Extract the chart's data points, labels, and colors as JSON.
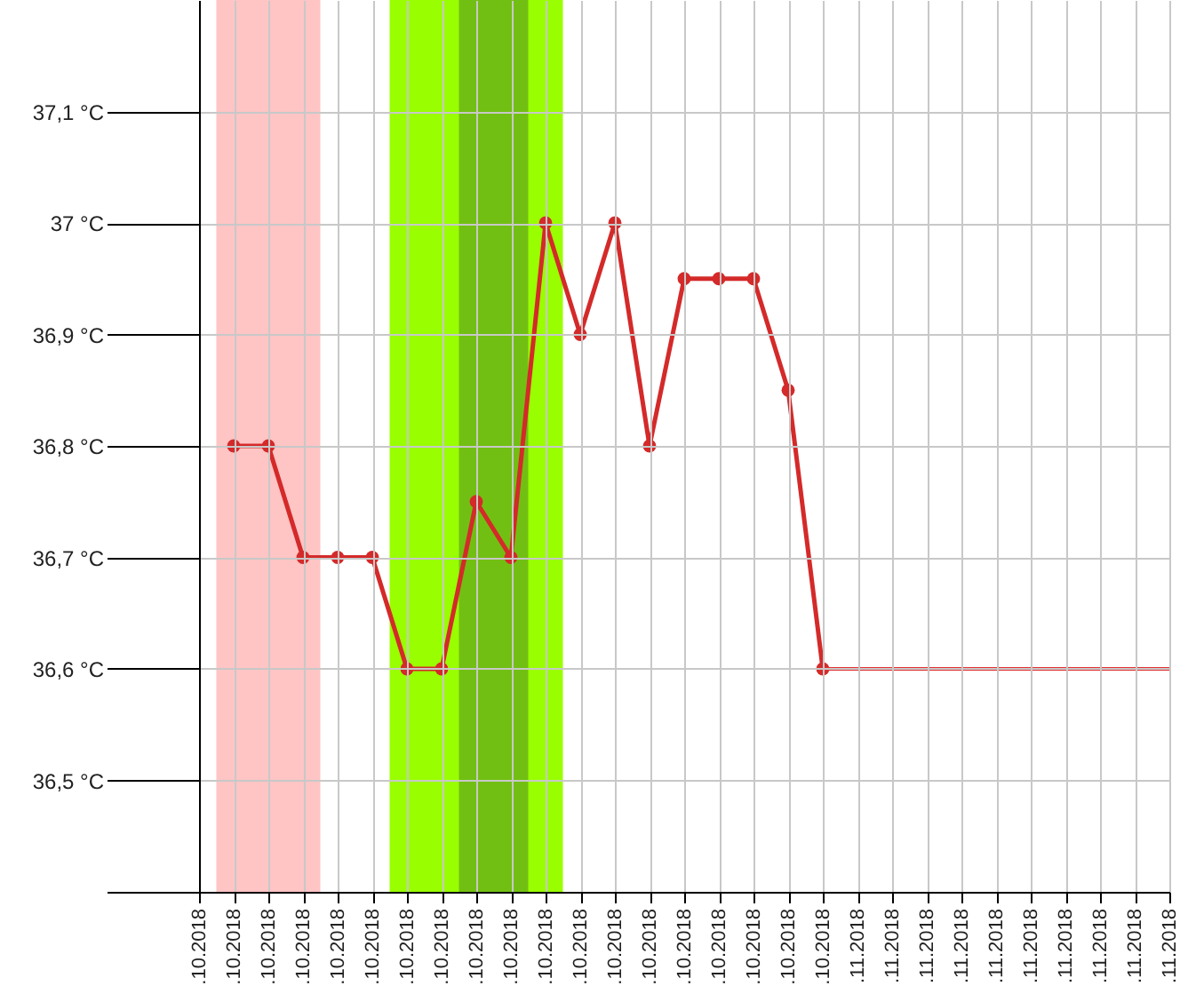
{
  "chart_data": {
    "type": "line",
    "categories": [
      ".10.2018",
      ".10.2018",
      ".10.2018",
      ".10.2018",
      ".10.2018",
      ".10.2018",
      ".10.2018",
      ".10.2018",
      ".10.2018",
      ".10.2018",
      ".10.2018",
      ".10.2018",
      ".10.2018",
      ".10.2018",
      ".10.2018",
      ".10.2018",
      ".10.2018",
      ".10.2018",
      ".10.2018",
      ".11.2018",
      ".11.2018",
      ".11.2018",
      ".11.2018",
      ".11.2018",
      ".11.2018",
      ".11.2018",
      ".11.2018",
      ".11.2018",
      ".11.2018"
    ],
    "series": [
      {
        "color": "#d42a2a",
        "marker": "circle",
        "values": [
          null,
          36.8,
          36.8,
          36.7,
          36.7,
          36.7,
          36.6,
          36.6,
          36.75,
          36.7,
          37.0,
          36.9,
          37.0,
          36.8,
          36.95,
          36.95,
          36.95,
          36.85,
          36.6,
          null,
          null,
          null,
          null,
          null,
          null,
          null,
          null,
          null,
          null
        ]
      },
      {
        "color": "#e03030",
        "marker": "none",
        "values": [
          null,
          null,
          null,
          null,
          null,
          null,
          null,
          null,
          null,
          null,
          null,
          null,
          null,
          null,
          null,
          null,
          null,
          null,
          36.6,
          36.6,
          36.6,
          36.6,
          36.6,
          36.6,
          36.6,
          36.6,
          36.6,
          36.6,
          36.6
        ]
      }
    ],
    "ylim": [
      36.4,
      37.2
    ],
    "yticks": [
      {
        "value": 36.4,
        "label": null
      },
      {
        "value": 36.5,
        "label": "36,5 °C"
      },
      {
        "value": 36.6,
        "label": "36,6 °C"
      },
      {
        "value": 36.7,
        "label": "36,7 °C"
      },
      {
        "value": 36.8,
        "label": "36,8 °C"
      },
      {
        "value": 36.9,
        "label": "36,9 °C"
      },
      {
        "value": 37.0,
        "label": "37 °C"
      },
      {
        "value": 37.1,
        "label": "37,1 °C"
      }
    ],
    "grid": true
  }
}
